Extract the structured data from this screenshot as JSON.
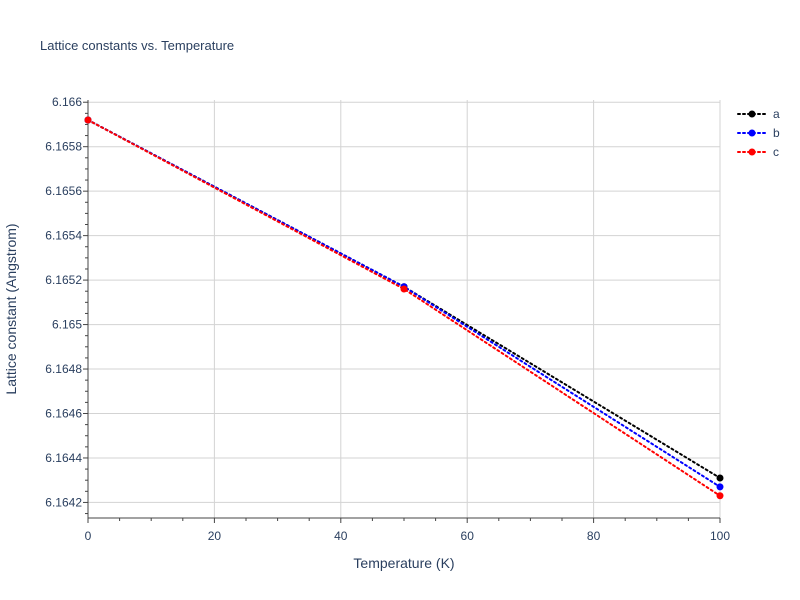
{
  "chart_data": {
    "type": "line",
    "title": "Lattice constants vs. Temperature",
    "xlabel": "Temperature (K)",
    "ylabel": "Lattice constant (Angstrom)",
    "xlim": [
      0,
      100
    ],
    "ylim": [
      6.16413,
      6.16601
    ],
    "x_ticks": [
      0,
      20,
      40,
      60,
      80,
      100
    ],
    "x_tick_labels": [
      "0",
      "20",
      "40",
      "60",
      "80",
      "100"
    ],
    "y_ticks": [
      6.1642,
      6.1644,
      6.1646,
      6.1648,
      6.165,
      6.1652,
      6.1654,
      6.1656,
      6.1658,
      6.166
    ],
    "y_tick_labels": [
      "6.1642",
      "6.1644",
      "6.1646",
      "6.1648",
      "6.165",
      "6.1652",
      "6.1654",
      "6.1656",
      "6.1658",
      "6.166"
    ],
    "grid": true,
    "legend_position": "top-right",
    "line_style": "dotted",
    "markers": true,
    "series": [
      {
        "name": "a",
        "color": "#000000",
        "x": [
          0,
          50,
          100
        ],
        "y": [
          6.16592,
          6.16517,
          6.16431
        ]
      },
      {
        "name": "b",
        "color": "#0000ff",
        "x": [
          0,
          50,
          100
        ],
        "y": [
          6.16592,
          6.16517,
          6.16427
        ]
      },
      {
        "name": "c",
        "color": "#ff0000",
        "x": [
          0,
          50,
          100
        ],
        "y": [
          6.16592,
          6.16516,
          6.16423
        ]
      }
    ]
  }
}
